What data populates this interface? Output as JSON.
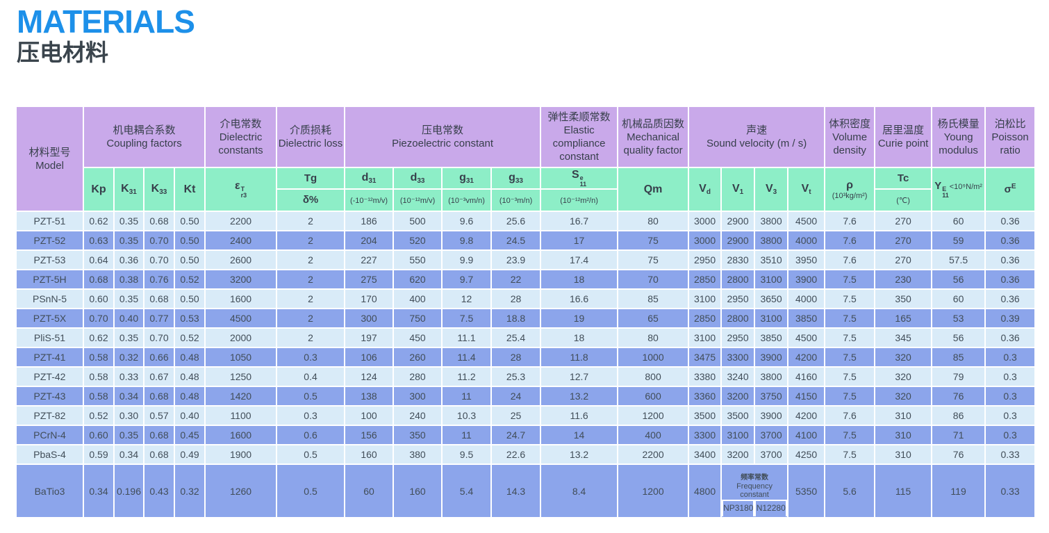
{
  "page": {
    "title_en": "MATERIALS",
    "title_zh": "压电材料"
  },
  "colors": {
    "title_blue": "#1d90e9",
    "header_purple": "#c9a9ea",
    "header_green": "#8deec7",
    "row_light": "#d9ebf8",
    "row_dark": "#8ca5eb"
  },
  "table": {
    "groups": {
      "model": {
        "zh": "材料型号",
        "en": "Model"
      },
      "coupling": {
        "zh": "机电耦合系数",
        "en": "Coupling factors"
      },
      "dielectric_const": {
        "zh": "介电常数",
        "en": "Dielectric constants"
      },
      "dielectric_loss": {
        "zh": "介质损耗",
        "en": "Dielectric loss"
      },
      "piezo": {
        "zh": "压电常数",
        "en": "Piezoelectric constant"
      },
      "elastic": {
        "zh": "弹性柔顺常数",
        "en": "Elastic compliance constant"
      },
      "mech_q": {
        "zh": "机械品质因数",
        "en": "Mechanical quality factor"
      },
      "sound": {
        "zh": "声速",
        "en": "Sound velocity (m / s)"
      },
      "density": {
        "zh": "体积密度",
        "en": "Volume density"
      },
      "curie": {
        "zh": "居里温度",
        "en": "Curie point"
      },
      "young": {
        "zh": "杨氏模量",
        "en": "Young modulus"
      },
      "poisson": {
        "zh": "泊松比",
        "en": "Poisson ratio"
      }
    },
    "sub": {
      "kp": "Kp",
      "k31": {
        "base": "K",
        "sub": "31"
      },
      "k33": {
        "base": "K",
        "sub": "33"
      },
      "kt": "Kt",
      "eps": {
        "base": "ε",
        "sup": "T",
        "sub": "r3"
      },
      "tg": {
        "line1": "Tg",
        "line2": "δ%"
      },
      "d31": {
        "base": "d",
        "sub": "31",
        "unit": "(-10⁻¹²m/v)"
      },
      "d33": {
        "base": "d",
        "sub": "33",
        "unit": "(10⁻¹²m/v)"
      },
      "g31": {
        "base": "g",
        "sub": "31",
        "unit": "(10⁻³vm/n)"
      },
      "g33": {
        "base": "g",
        "sub": "33",
        "unit": "(10⁻³m/n)"
      },
      "s11": {
        "base": "S",
        "sup": "e",
        "sub": "11",
        "unit": "(10⁻¹²m²/n)"
      },
      "qm": "Qm",
      "vd": {
        "base": "V",
        "sub": "d"
      },
      "v1": {
        "base": "V",
        "sub": "1"
      },
      "v3": {
        "base": "V",
        "sub": "3"
      },
      "vt": {
        "base": "V",
        "sub": "t"
      },
      "rho": {
        "base": "ρ",
        "unit": "(10³kg/m²)"
      },
      "tc": {
        "line1": "Tc",
        "line2": "(℃)"
      },
      "young": {
        "base": "Y",
        "sup": "E",
        "sub": "11",
        "unit": "<10⁹N/m²"
      },
      "sigma": {
        "base": "σ",
        "sup": "E"
      }
    },
    "rows": [
      {
        "model": "PZT-51",
        "values": [
          "0.62",
          "0.35",
          "0.68",
          "0.50",
          "2200",
          "2",
          "186",
          "500",
          "9.6",
          "25.6",
          "16.7",
          "80",
          "3000",
          "2900",
          "3800",
          "4500",
          "7.6",
          "270",
          "60",
          "0.36"
        ]
      },
      {
        "model": "PZT-52",
        "values": [
          "0.63",
          "0.35",
          "0.70",
          "0.50",
          "2400",
          "2",
          "204",
          "520",
          "9.8",
          "24.5",
          "17",
          "75",
          "3000",
          "2900",
          "3800",
          "4000",
          "7.6",
          "270",
          "59",
          "0.36"
        ]
      },
      {
        "model": "PZT-53",
        "values": [
          "0.64",
          "0.36",
          "0.70",
          "0.50",
          "2600",
          "2",
          "227",
          "550",
          "9.9",
          "23.9",
          "17.4",
          "75",
          "2950",
          "2830",
          "3510",
          "3950",
          "7.6",
          "270",
          "57.5",
          "0.36"
        ]
      },
      {
        "model": "PZT-5H",
        "values": [
          "0.68",
          "0.38",
          "0.76",
          "0.52",
          "3200",
          "2",
          "275",
          "620",
          "9.7",
          "22",
          "18",
          "70",
          "2850",
          "2800",
          "3100",
          "3900",
          "7.5",
          "230",
          "56",
          "0.36"
        ]
      },
      {
        "model": "PSnN-5",
        "values": [
          "0.60",
          "0.35",
          "0.68",
          "0.50",
          "1600",
          "2",
          "170",
          "400",
          "12",
          "28",
          "16.6",
          "85",
          "3100",
          "2950",
          "3650",
          "4000",
          "7.5",
          "350",
          "60",
          "0.36"
        ]
      },
      {
        "model": "PZT-5X",
        "values": [
          "0.70",
          "0.40",
          "0.77",
          "0.53",
          "4500",
          "2",
          "300",
          "750",
          "7.5",
          "18.8",
          "19",
          "65",
          "2850",
          "2800",
          "3100",
          "3850",
          "7.5",
          "165",
          "53",
          "0.39"
        ]
      },
      {
        "model": "PliS-51",
        "values": [
          "0.62",
          "0.35",
          "0.70",
          "0.52",
          "2000",
          "2",
          "197",
          "450",
          "11.1",
          "25.4",
          "18",
          "80",
          "3100",
          "2950",
          "3850",
          "4500",
          "7.5",
          "345",
          "56",
          "0.36"
        ]
      },
      {
        "model": "PZT-41",
        "values": [
          "0.58",
          "0.32",
          "0.66",
          "0.48",
          "1050",
          "0.3",
          "106",
          "260",
          "11.4",
          "28",
          "11.8",
          "1000",
          "3475",
          "3300",
          "3900",
          "4200",
          "7.5",
          "320",
          "85",
          "0.3"
        ]
      },
      {
        "model": "PZT-42",
        "values": [
          "0.58",
          "0.33",
          "0.67",
          "0.48",
          "1250",
          "0.4",
          "124",
          "280",
          "11.2",
          "25.3",
          "12.7",
          "800",
          "3380",
          "3240",
          "3800",
          "4160",
          "7.5",
          "320",
          "79",
          "0.3"
        ]
      },
      {
        "model": "PZT-43",
        "values": [
          "0.58",
          "0.34",
          "0.68",
          "0.48",
          "1420",
          "0.5",
          "138",
          "300",
          "11",
          "24",
          "13.2",
          "600",
          "3360",
          "3200",
          "3750",
          "4150",
          "7.5",
          "320",
          "76",
          "0.3"
        ]
      },
      {
        "model": "PZT-82",
        "values": [
          "0.52",
          "0.30",
          "0.57",
          "0.40",
          "1100",
          "0.3",
          "100",
          "240",
          "10.3",
          "25",
          "11.6",
          "1200",
          "3500",
          "3500",
          "3900",
          "4200",
          "7.6",
          "310",
          "86",
          "0.3"
        ]
      },
      {
        "model": "PCrN-4",
        "values": [
          "0.60",
          "0.35",
          "0.68",
          "0.45",
          "1600",
          "0.6",
          "156",
          "350",
          "11",
          "24.7",
          "14",
          "400",
          "3300",
          "3100",
          "3700",
          "4100",
          "7.5",
          "310",
          "71",
          "0.3"
        ]
      },
      {
        "model": "PbaS-4",
        "values": [
          "0.59",
          "0.34",
          "0.68",
          "0.49",
          "1900",
          "0.5",
          "160",
          "380",
          "9.5",
          "22.6",
          "13.2",
          "2200",
          "3400",
          "3200",
          "3700",
          "4250",
          "7.5",
          "310",
          "76",
          "0.33"
        ]
      }
    ],
    "special_row": {
      "model": "BaTio3",
      "values_left": [
        "0.34",
        "0.196",
        "0.43",
        "0.32",
        "1260",
        "0.5",
        "60",
        "160",
        "5.4",
        "14.3",
        "8.4",
        "1200",
        "4800"
      ],
      "freq": {
        "zh": "频率常数",
        "en": "Frequency constant",
        "left": "NP3180",
        "right": "N12280"
      },
      "values_right": [
        "5350",
        "5.6",
        "115",
        "119",
        "0.33"
      ]
    }
  }
}
